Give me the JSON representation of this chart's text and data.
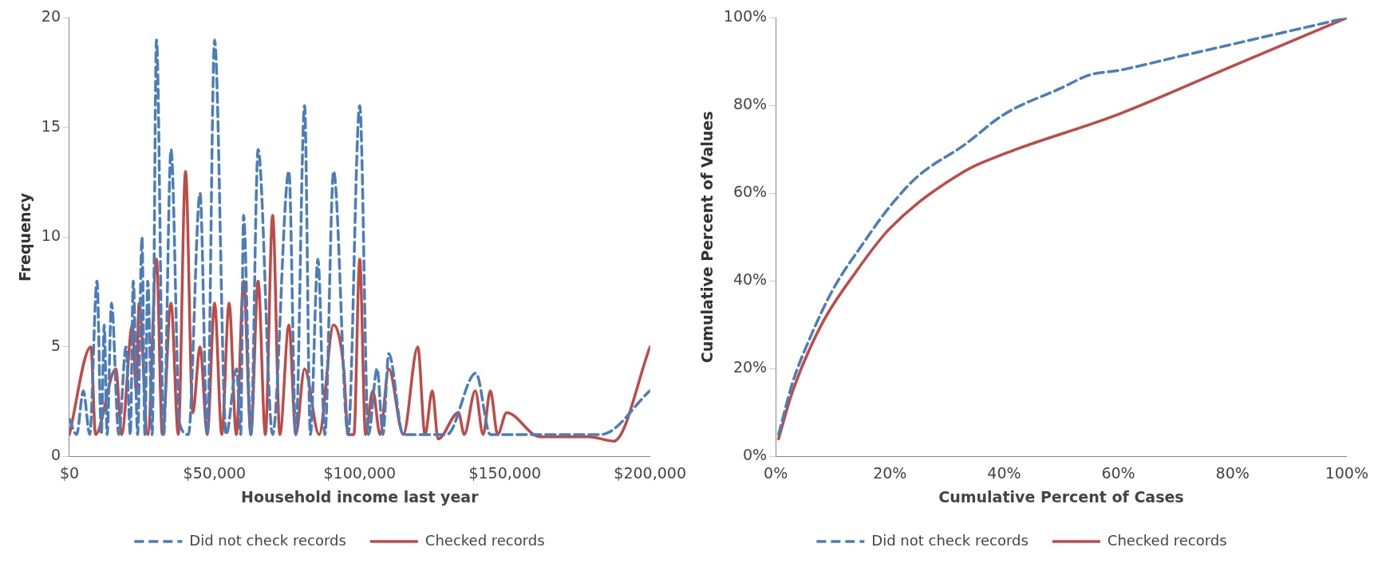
{
  "chart_data": [
    {
      "type": "line",
      "xlabel": "Household income last year",
      "ylabel": "Frequency",
      "xlim": [
        0,
        200000
      ],
      "ylim": [
        0,
        20
      ],
      "xticks": [
        {
          "value": 0,
          "label": "$0"
        },
        {
          "value": 50000,
          "label": "$50,000"
        },
        {
          "value": 100000,
          "label": "$100,000"
        },
        {
          "value": 150000,
          "label": "$150,000"
        },
        {
          "value": 200000,
          "label": "$200,000"
        }
      ],
      "yticks": [
        0,
        5,
        10,
        15,
        20
      ],
      "grid": false,
      "legend": "bottom",
      "marker": "none",
      "series": [
        {
          "name": "Did not check records",
          "color": "#4a7ebb",
          "line_style": "dashed",
          "x": [
            0,
            2500,
            4800,
            7000,
            9500,
            11000,
            12000,
            13000,
            14500,
            17000,
            19500,
            21000,
            22000,
            23500,
            25000,
            26000,
            27000,
            28500,
            30000,
            32500,
            35000,
            38000,
            41000,
            45000,
            47500,
            50000,
            54000,
            57600,
            59000,
            60000,
            62500,
            65000,
            70000,
            75600,
            78000,
            81000,
            83000,
            85600,
            88000,
            91000,
            96000,
            100000,
            103000,
            106000,
            108000,
            110000,
            115000,
            130000,
            140000,
            145000,
            160000,
            183000,
            200000
          ],
          "values": [
            1.7,
            1,
            3,
            1,
            8,
            1,
            6,
            1,
            7,
            1,
            5,
            1,
            8,
            1,
            10,
            1,
            8,
            1,
            19,
            1,
            14,
            1.5,
            1,
            12,
            1,
            19,
            1,
            4,
            1,
            11,
            1,
            14,
            1,
            13,
            1,
            16,
            1,
            9,
            1,
            13,
            1,
            16,
            1,
            4,
            1,
            4.7,
            1,
            1,
            3.8,
            1,
            1,
            1,
            3
          ]
        },
        {
          "name": "Checked records",
          "color": "#be4b48",
          "line_style": "solid",
          "x": [
            0,
            7400,
            9000,
            16000,
            18000,
            21700,
            23000,
            24000,
            27000,
            30000,
            32000,
            35000,
            37500,
            40000,
            42500,
            45000,
            47500,
            50000,
            52500,
            55000,
            57500,
            60000,
            62500,
            65000,
            67500,
            70000,
            72500,
            75600,
            78000,
            81000,
            86000,
            91000,
            94500,
            96000,
            98000,
            100000,
            102000,
            104500,
            107000,
            110000,
            115000,
            120000,
            122500,
            125000,
            127000,
            134000,
            136000,
            139800,
            142500,
            145000,
            147500,
            150600,
            162000,
            179000,
            187500,
            200000
          ],
          "values": [
            1,
            5,
            1,
            4,
            1,
            6,
            3,
            7,
            1,
            9,
            1,
            7,
            1,
            13,
            2,
            5,
            1,
            7,
            1,
            7,
            1,
            8,
            1,
            8,
            1,
            11,
            1,
            6,
            1,
            4,
            1,
            6,
            4,
            1,
            1,
            9,
            1,
            3,
            1,
            4,
            1,
            5,
            1,
            3,
            0.8,
            2,
            1,
            3,
            1,
            3,
            1,
            2,
            0.9,
            0.9,
            0.7,
            5
          ]
        }
      ]
    },
    {
      "type": "line",
      "xlabel": "Cumulative Percent of Cases",
      "ylabel": "Cumulative Percent of Values",
      "xlim": [
        0,
        100
      ],
      "ylim": [
        0,
        100
      ],
      "xticks": [
        {
          "value": 0,
          "label": "0%"
        },
        {
          "value": 20,
          "label": "20%"
        },
        {
          "value": 40,
          "label": "40%"
        },
        {
          "value": 60,
          "label": "60%"
        },
        {
          "value": 80,
          "label": "80%"
        },
        {
          "value": 100,
          "label": "100%"
        }
      ],
      "yticks": [
        {
          "value": 0,
          "label": "0%"
        },
        {
          "value": 20,
          "label": "20%"
        },
        {
          "value": 40,
          "label": "40%"
        },
        {
          "value": 60,
          "label": "60%"
        },
        {
          "value": 80,
          "label": "80%"
        },
        {
          "value": 100,
          "label": "100%"
        }
      ],
      "grid": false,
      "legend": "bottom",
      "marker": "none",
      "series": [
        {
          "name": "Did not check records",
          "color": "#4a7ebb",
          "line_style": "dashed",
          "x": [
            0.5,
            3,
            6,
            10,
            15,
            20,
            25,
            33,
            40,
            50,
            55,
            60,
            70,
            80,
            90,
            100
          ],
          "values": [
            5,
            17,
            27,
            38,
            48,
            57,
            64,
            71,
            78,
            84,
            87,
            88,
            91,
            94,
            97,
            100
          ]
        },
        {
          "name": "Checked records",
          "color": "#be4b48",
          "line_style": "solid",
          "x": [
            0.5,
            3,
            8,
            14,
            20,
            33,
            40,
            60,
            80,
            100
          ],
          "values": [
            4,
            15,
            30,
            42,
            52,
            65,
            69,
            78,
            89,
            100
          ]
        }
      ]
    }
  ]
}
